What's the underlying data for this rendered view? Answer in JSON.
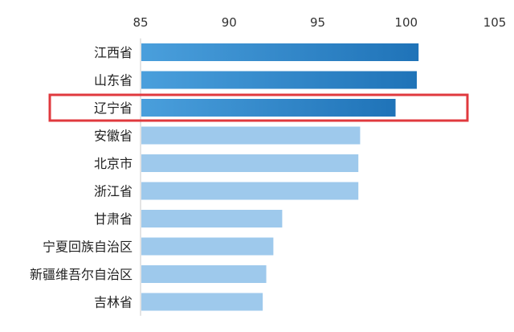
{
  "chart_data": {
    "type": "bar",
    "orientation": "horizontal",
    "x_axis_position": "top",
    "xlim": [
      85,
      105
    ],
    "xticks": [
      85,
      90,
      95,
      100,
      105
    ],
    "grid": false,
    "categories": [
      "江西省",
      "山东省",
      "辽宁省",
      "安徽省",
      "北京市",
      "浙江省",
      "甘肃省",
      "宁夏回族自治区",
      "新疆维吾尔自治区",
      "吉林省"
    ],
    "values": [
      100.7,
      100.6,
      99.4,
      97.4,
      97.3,
      97.3,
      93.0,
      92.5,
      92.1,
      91.9
    ],
    "highlighted_categories": [
      "江西省",
      "山东省",
      "辽宁省"
    ],
    "boxed_category": "辽宁省",
    "colors": {
      "highlight_bar_start": "#4a9fdc",
      "highlight_bar_end": "#1f73b8",
      "normal_bar": "#9ec9ec",
      "box_outline": "#e0393e",
      "axis": "#c8c8c8",
      "text": "#222222"
    }
  }
}
